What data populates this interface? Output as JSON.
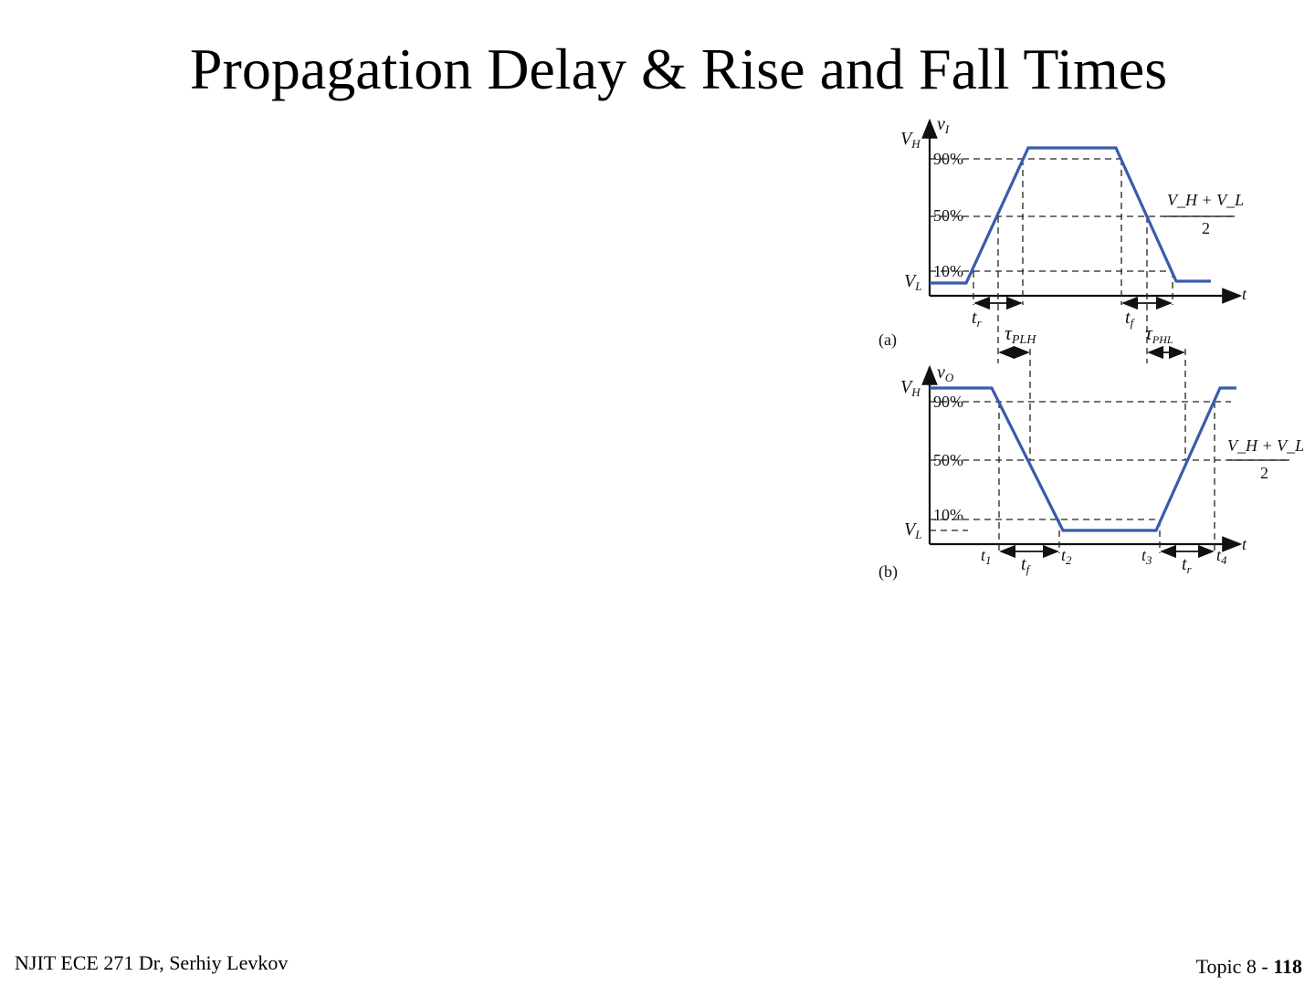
{
  "title": "Propagation Delay & Rise and Fall Times",
  "footer": {
    "left": "NJIT ECE 271  Dr, Serhiy Levkov",
    "topic": "Topic 8 - ",
    "page": "118"
  },
  "colors": {
    "waveform": "#3a5bab"
  },
  "figure": {
    "panel_a": {
      "caption": "(a)",
      "axis_y": "v",
      "axis_y_sub": "I",
      "axis_x": "t",
      "level_high": "V",
      "level_high_sub": "H",
      "level_low": "V",
      "level_low_sub": "L",
      "pct_90": "90%",
      "pct_50": "50%",
      "pct_10": "10%",
      "mid_num": "V_H + V_L",
      "mid_den": "2",
      "rise": "t",
      "rise_sub": "r",
      "fall": "t",
      "fall_sub": "f",
      "tau_plh": "τ",
      "tau_plh_sub": "PLH",
      "tau_phl": "τ",
      "tau_phl_sub": "PHL"
    },
    "panel_b": {
      "caption": "(b)",
      "axis_y": "v",
      "axis_y_sub": "O",
      "axis_x": "t",
      "level_high": "V",
      "level_high_sub": "H",
      "level_low": "V",
      "level_low_sub": "L",
      "pct_90": "90%",
      "pct_50": "50%",
      "pct_10": "10%",
      "mid_num": "V_H + V_L",
      "mid_den": "2",
      "t1": "t",
      "t1_sub": "1",
      "t2": "t",
      "t2_sub": "2",
      "t3": "t",
      "t3_sub": "3",
      "t4": "t",
      "t4_sub": "4",
      "fall": "t",
      "fall_sub": "f",
      "rise": "t",
      "rise_sub": "r"
    }
  }
}
